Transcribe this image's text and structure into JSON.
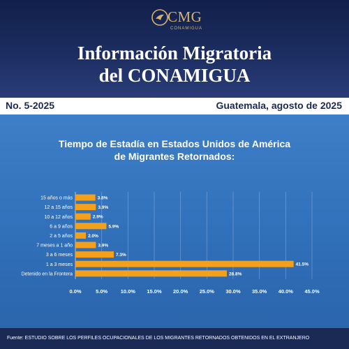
{
  "brand": {
    "logo_text": "CMG",
    "logo_sub": "CONAMIGUA"
  },
  "header": {
    "title_line1": "Información Migratoria",
    "title_line2": "del CONAMIGUA"
  },
  "infobar": {
    "issue": "No. 5-2025",
    "place_date": "Guatemala, agosto de 2025"
  },
  "colors": {
    "bar": "#f5a01a",
    "panel": "#3378c0",
    "navy": "#1b2a55"
  },
  "chart_data": {
    "type": "bar",
    "orientation": "horizontal",
    "title_line1": "Tiempo de Estadía en Estados Unidos de América",
    "title_line2": "de Migrantes Retornados:",
    "categories": [
      "15 años o más",
      "12 a 15 años",
      "10 a 12 años",
      "6 a 9 años",
      "2 a 5 años",
      "7 meses a 1 año",
      "3 a 6 meses",
      "1 a 3 meses",
      "Detenido en la Frontera"
    ],
    "values": [
      3.8,
      3.9,
      2.9,
      5.9,
      2.0,
      3.9,
      7.3,
      41.5,
      28.8
    ],
    "value_labels": [
      "3.8%",
      "3.9%",
      "2.9%",
      "5.9%",
      "2.0%",
      "3.9%",
      "7.3%",
      "41.5%",
      "28.8%"
    ],
    "xlim": [
      0,
      45
    ],
    "xticks": [
      0,
      5,
      10,
      15,
      20,
      25,
      30,
      35,
      40,
      45
    ],
    "xtick_labels": [
      "0.0%",
      "5.0%",
      "10.0%",
      "15.0%",
      "20.0%",
      "25.0%",
      "30.0%",
      "35.0%",
      "40.0%",
      "45.0%"
    ],
    "grid": true
  },
  "footer": {
    "source": "Fuente: ESTUDIO SOBRE LOS PERFILES OCUPACIONALES DE LOS MIGRANTES RETORNADOS OBTENIDOS EN EL EXTRANJERO"
  }
}
